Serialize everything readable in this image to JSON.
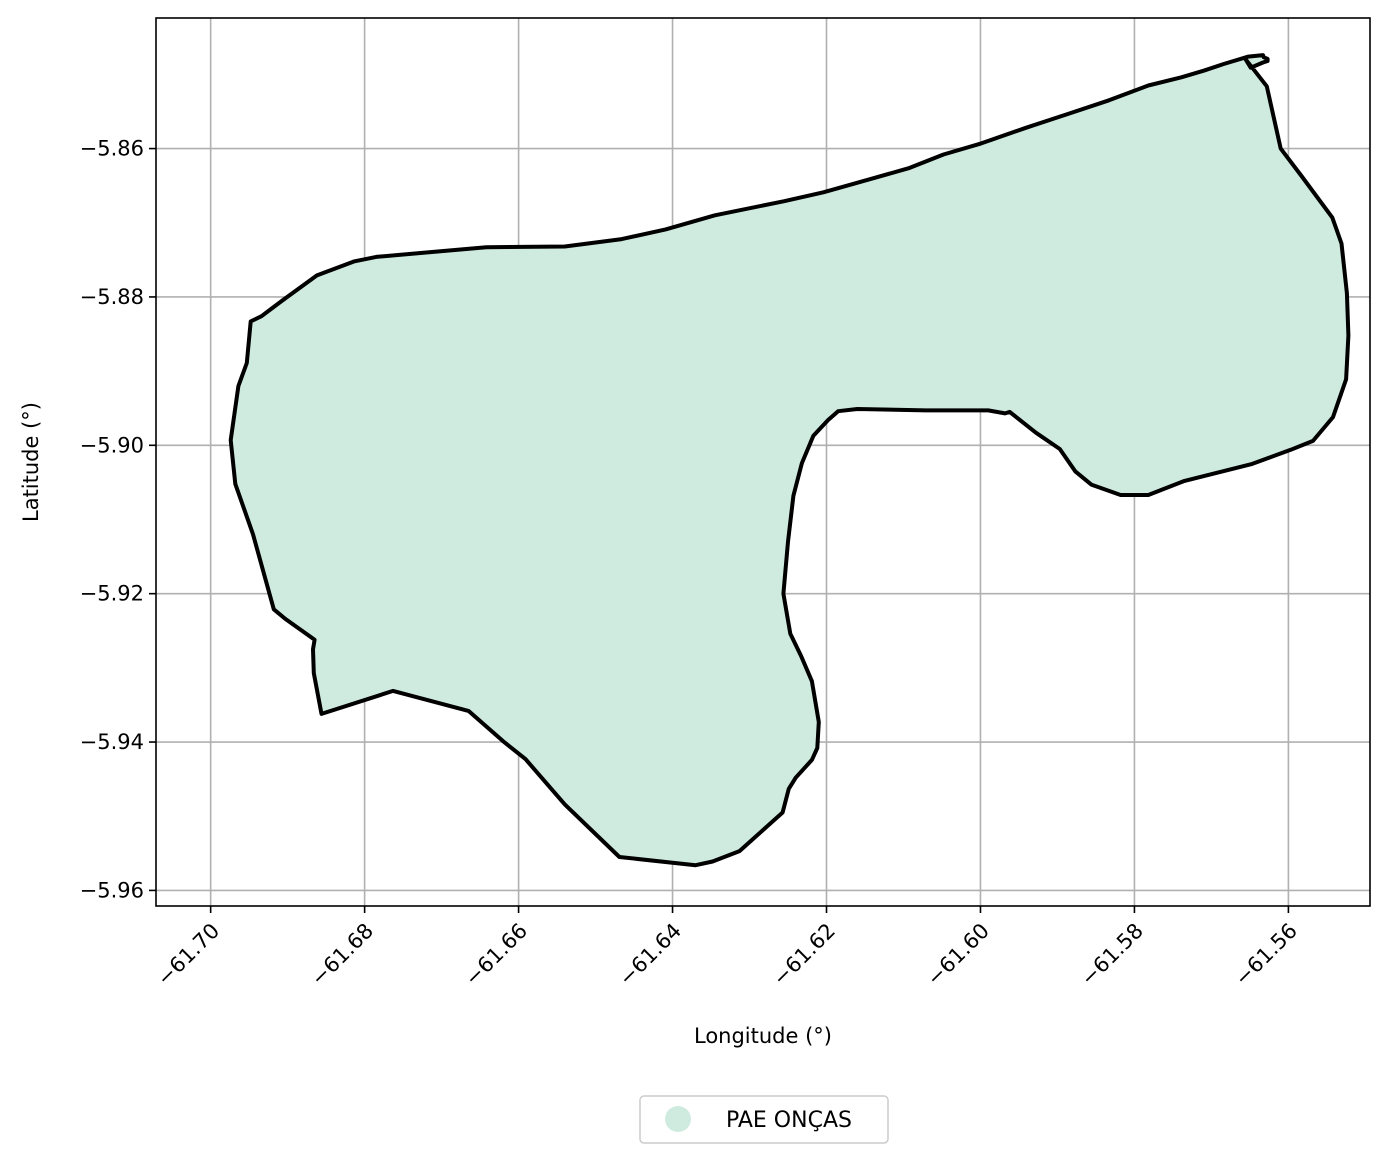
{
  "chart_data": {
    "type": "map",
    "xlabel": "Longitude (°)",
    "ylabel": "Latitude (°)",
    "xlim": [
      -61.7071,
      -61.5494
    ],
    "ylim": [
      -5.9621,
      -5.8424
    ],
    "xticks": [
      -61.7,
      -61.68,
      -61.66,
      -61.64,
      -61.62,
      -61.6,
      -61.58,
      -61.56
    ],
    "xtick_labels": [
      "−61.70",
      "−61.68",
      "−61.66",
      "−61.64",
      "−61.62",
      "−61.60",
      "−61.58",
      "−61.56"
    ],
    "yticks": [
      -5.86,
      -5.88,
      -5.9,
      -5.92,
      -5.94,
      -5.96
    ],
    "ytick_labels": [
      "−5.86",
      "−5.88",
      "−5.90",
      "−5.92",
      "−5.94",
      "−5.96"
    ],
    "grid": true,
    "legend_position": "bottom-center, below plot",
    "series": [
      {
        "name": "PAE ONÇAS",
        "fill_color": "#cfebdf",
        "edge_color": "#000000",
        "polygon": [
          [
            -61.5656,
            -5.8479
          ],
          [
            -61.5628,
            -5.8516
          ],
          [
            -61.561,
            -5.86
          ],
          [
            -61.5583,
            -5.8637
          ],
          [
            -61.5543,
            -5.8693
          ],
          [
            -61.5531,
            -5.8728
          ],
          [
            -61.5524,
            -5.8795
          ],
          [
            -61.5522,
            -5.8852
          ],
          [
            -61.5525,
            -5.8911
          ],
          [
            -61.5542,
            -5.8962
          ],
          [
            -61.5568,
            -5.8994
          ],
          [
            -61.5597,
            -5.9006
          ],
          [
            -61.5647,
            -5.9025
          ],
          [
            -61.5735,
            -5.9048
          ],
          [
            -61.5782,
            -5.9067
          ],
          [
            -61.5818,
            -5.9067
          ],
          [
            -61.5856,
            -5.9053
          ],
          [
            -61.5877,
            -5.9035
          ],
          [
            -61.5897,
            -5.9005
          ],
          [
            -61.5928,
            -5.8983
          ],
          [
            -61.5962,
            -5.8955
          ],
          [
            -61.5968,
            -5.8957
          ],
          [
            -61.599,
            -5.8953
          ],
          [
            -61.6071,
            -5.8953
          ],
          [
            -61.616,
            -5.8951
          ],
          [
            -61.6185,
            -5.8954
          ],
          [
            -61.6198,
            -5.8966
          ],
          [
            -61.6217,
            -5.8987
          ],
          [
            -61.6232,
            -5.9024
          ],
          [
            -61.6243,
            -5.9068
          ],
          [
            -61.625,
            -5.913
          ],
          [
            -61.6256,
            -5.92
          ],
          [
            -61.6247,
            -5.9254
          ],
          [
            -61.6233,
            -5.9284
          ],
          [
            -61.6219,
            -5.9318
          ],
          [
            -61.621,
            -5.9373
          ],
          [
            -61.6212,
            -5.9408
          ],
          [
            -61.6219,
            -5.9424
          ],
          [
            -61.624,
            -5.9448
          ],
          [
            -61.6249,
            -5.9463
          ],
          [
            -61.6257,
            -5.9495
          ],
          [
            -61.6313,
            -5.9547
          ],
          [
            -61.6348,
            -5.9561
          ],
          [
            -61.637,
            -5.9566
          ],
          [
            -61.6469,
            -5.9555
          ],
          [
            -61.654,
            -5.9484
          ],
          [
            -61.6591,
            -5.9423
          ],
          [
            -61.662,
            -5.9399
          ],
          [
            -61.6665,
            -5.9358
          ],
          [
            -61.6763,
            -5.9331
          ],
          [
            -61.6856,
            -5.9362
          ],
          [
            -61.6866,
            -5.9307
          ],
          [
            -61.6867,
            -5.9275
          ],
          [
            -61.6865,
            -5.9262
          ],
          [
            -61.6903,
            -5.9234
          ],
          [
            -61.6918,
            -5.9221
          ],
          [
            -61.6945,
            -5.912
          ],
          [
            -61.6968,
            -5.9052
          ],
          [
            -61.6974,
            -5.8993
          ],
          [
            -61.6964,
            -5.892
          ],
          [
            -61.6953,
            -5.8889
          ],
          [
            -61.6948,
            -5.8833
          ],
          [
            -61.6934,
            -5.8826
          ],
          [
            -61.692,
            -5.8815
          ],
          [
            -61.6907,
            -5.8805
          ],
          [
            -61.6862,
            -5.8771
          ],
          [
            -61.6813,
            -5.8752
          ],
          [
            -61.6785,
            -5.8746
          ],
          [
            -61.6718,
            -5.874
          ],
          [
            -61.6642,
            -5.8733
          ],
          [
            -61.654,
            -5.8732
          ],
          [
            -61.6466,
            -5.8722
          ],
          [
            -61.6409,
            -5.8709
          ],
          [
            -61.6345,
            -5.869
          ],
          [
            -61.6255,
            -5.8671
          ],
          [
            -61.6204,
            -5.8659
          ],
          [
            -61.6139,
            -5.864
          ],
          [
            -61.6092,
            -5.8626
          ],
          [
            -61.6048,
            -5.8608
          ],
          [
            -61.5999,
            -5.8593
          ],
          [
            -61.5941,
            -5.8572
          ],
          [
            -61.5888,
            -5.8554
          ],
          [
            -61.5833,
            -5.8535
          ],
          [
            -61.5782,
            -5.8515
          ],
          [
            -61.5739,
            -5.8504
          ],
          [
            -61.571,
            -5.8495
          ],
          [
            -61.5684,
            -5.8486
          ],
          [
            -61.5652,
            -5.8476
          ],
          [
            -61.5633,
            -5.8474
          ],
          [
            -61.5632,
            -5.8477
          ],
          [
            -61.5627,
            -5.8479
          ],
          [
            -61.5627,
            -5.8482
          ],
          [
            -61.5633,
            -5.8484
          ],
          [
            -61.5633,
            -5.8484
          ],
          [
            -61.5649,
            -5.8491
          ],
          [
            -61.5656,
            -5.8479
          ]
        ]
      }
    ]
  }
}
